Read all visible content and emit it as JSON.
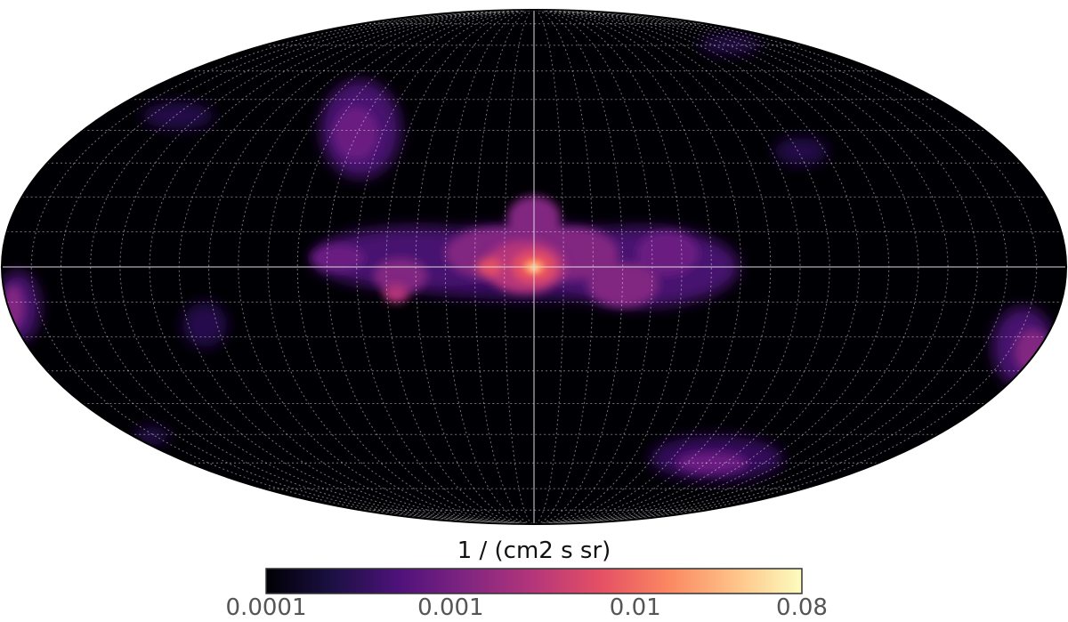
{
  "map": {
    "projection": "Mollweide",
    "graticule": true,
    "colormap": "magma",
    "scale": "log",
    "background_color": "#000004",
    "outline_color": "#000000",
    "graticule_color": "#ffffff"
  },
  "colorbar": {
    "unit_label": "1 / (cm2 s sr)",
    "min": 0.0001,
    "max": 0.08,
    "scale": "log",
    "colors": [
      "#000004",
      "#1c1044",
      "#4f127b",
      "#812581",
      "#b5367a",
      "#e55064",
      "#fb8761",
      "#fec287",
      "#fcfdbf"
    ],
    "ticks": [
      {
        "label": "0.0001",
        "value": 0.0001
      },
      {
        "label": "0.001",
        "value": 0.001
      },
      {
        "label": "0.01",
        "value": 0.01
      },
      {
        "label": "0.08",
        "value": 0.08
      }
    ]
  }
}
